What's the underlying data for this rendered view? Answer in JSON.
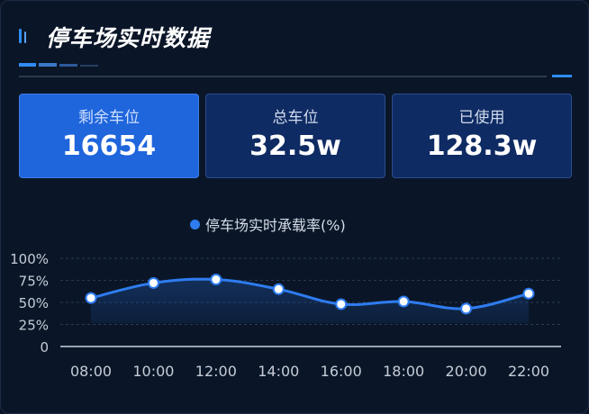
{
  "header": {
    "title": "停车场实时数据"
  },
  "stats": [
    {
      "label": "剩余车位",
      "value": "16654",
      "active": true
    },
    {
      "label": "总车位",
      "value": "32.5w",
      "active": false
    },
    {
      "label": "已使用",
      "value": "128.3w",
      "active": false
    }
  ],
  "colors": {
    "accent": "#2e7cf0",
    "card_active": "#1f65dc",
    "card": "#0f2b63",
    "background": "#0a1628"
  },
  "chart_data": {
    "type": "line",
    "title": "",
    "xlabel": "",
    "ylabel": "",
    "categories": [
      "08:00",
      "10:00",
      "12:00",
      "14:00",
      "16:00",
      "18:00",
      "20:00",
      "22:00"
    ],
    "series": [
      {
        "name": "停车场实时承载率(%)",
        "values": [
          55,
          72,
          76,
          65,
          48,
          51,
          43,
          60
        ],
        "color": "#2e7cf0"
      }
    ],
    "ylim": [
      0,
      100
    ],
    "yticks": [
      0,
      25,
      50,
      75,
      100
    ],
    "ytick_labels": [
      "0",
      "25%",
      "50%",
      "75%",
      "100%"
    ],
    "grid": true,
    "grid_style": "dashed",
    "smooth": true,
    "area_fill": true,
    "legend_position": "top-center"
  }
}
